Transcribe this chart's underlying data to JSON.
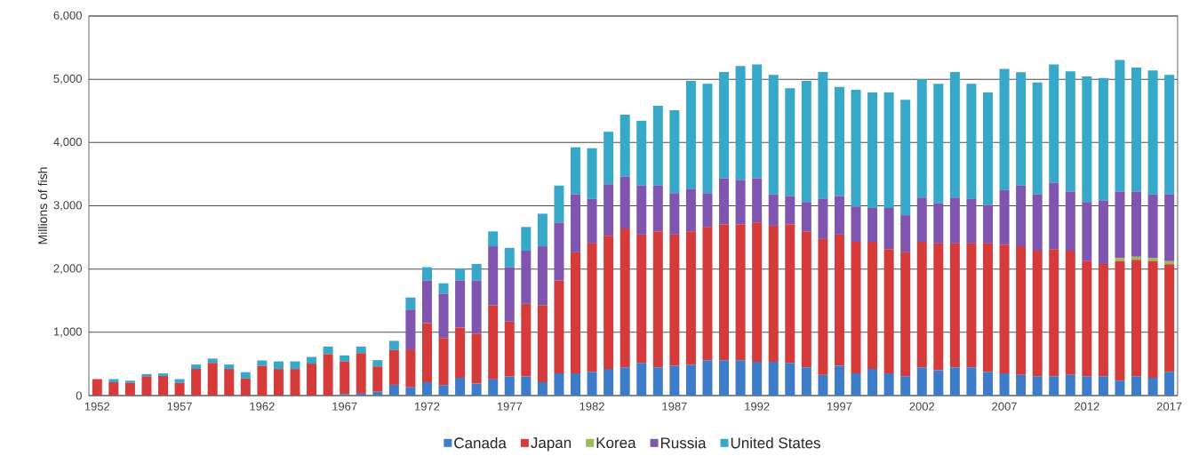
{
  "chart_data": {
    "type": "bar",
    "stacked": true,
    "ylabel": "Millions of fish",
    "categories": [
      "1952",
      null,
      null,
      null,
      null,
      "1957",
      null,
      null,
      null,
      null,
      "1962",
      null,
      null,
      null,
      null,
      "1967",
      null,
      null,
      null,
      null,
      "1972",
      null,
      null,
      null,
      null,
      "1977",
      null,
      null,
      null,
      null,
      "1982",
      null,
      null,
      null,
      null,
      "1987",
      null,
      null,
      null,
      null,
      "1992",
      null,
      null,
      null,
      null,
      "1997",
      null,
      null,
      null,
      null,
      "2002",
      null,
      null,
      null,
      null,
      "2007",
      null,
      null,
      null,
      null,
      "2012",
      null,
      null,
      null,
      null,
      "2017"
    ],
    "series": [
      {
        "name": "Canada",
        "color": "#3d7cc9",
        "values": [
          0,
          0,
          0,
          0,
          0,
          0,
          0,
          0,
          0,
          0,
          0,
          0,
          0,
          0,
          0,
          20,
          30,
          60,
          170,
          130,
          210,
          165,
          280,
          190,
          255,
          300,
          300,
          210,
          350,
          350,
          375,
          420,
          445,
          515,
          445,
          470,
          490,
          560,
          560,
          560,
          535,
          535,
          515,
          445,
          325,
          470,
          350,
          420,
          350,
          305,
          445,
          400,
          445,
          445,
          375,
          350,
          325,
          305,
          305,
          325,
          305,
          305,
          235,
          305,
          280,
          375
        ]
      },
      {
        "name": "Japan",
        "color": "#d63b3b",
        "values": [
          260,
          210,
          200,
          305,
          310,
          200,
          420,
          515,
          420,
          270,
          470,
          420,
          420,
          505,
          655,
          520,
          640,
          400,
          550,
          600,
          935,
          745,
          795,
          790,
          1170,
          870,
          1150,
          1215,
          1470,
          1915,
          2030,
          2105,
          2195,
          2030,
          2150,
          2075,
          2105,
          2105,
          2150,
          2150,
          2200,
          2150,
          2195,
          2150,
          2150,
          2075,
          2080,
          2010,
          1965,
          1960,
          1985,
          2005,
          1960,
          1960,
          2030,
          2035,
          2035,
          1985,
          2010,
          1965,
          1820,
          1775,
          1890,
          1840,
          1845,
          1700
        ]
      },
      {
        "name": "Korea",
        "color": "#9bbb59",
        "values": [
          0,
          0,
          0,
          0,
          0,
          0,
          0,
          0,
          0,
          0,
          0,
          0,
          0,
          0,
          0,
          0,
          0,
          0,
          0,
          0,
          0,
          0,
          0,
          0,
          0,
          0,
          0,
          0,
          0,
          0,
          0,
          0,
          0,
          0,
          0,
          0,
          0,
          0,
          0,
          0,
          0,
          0,
          0,
          0,
          0,
          0,
          0,
          0,
          0,
          0,
          0,
          0,
          0,
          0,
          0,
          0,
          0,
          0,
          0,
          0,
          0,
          0,
          50,
          50,
          50,
          50
        ]
      },
      {
        "name": "Russia",
        "color": "#7f55b0",
        "values": [
          0,
          0,
          0,
          0,
          0,
          0,
          0,
          0,
          0,
          0,
          0,
          0,
          0,
          0,
          0,
          0,
          0,
          0,
          0,
          630,
          675,
          700,
          745,
          840,
          935,
          860,
          840,
          935,
          915,
          915,
          705,
          815,
          820,
          775,
          725,
          655,
          675,
          535,
          725,
          700,
          700,
          495,
          445,
          465,
          635,
          610,
          560,
          535,
          650,
          585,
          700,
          635,
          725,
          705,
          610,
          865,
          960,
          890,
          1050,
          935,
          935,
          1005,
          1050,
          1030,
          1005,
          1055
        ]
      },
      {
        "name": "United States",
        "color": "#37a8c8",
        "values": [
          0,
          50,
          35,
          35,
          40,
          60,
          70,
          70,
          70,
          100,
          85,
          120,
          120,
          105,
          120,
          95,
          105,
          100,
          145,
          190,
          210,
          165,
          190,
          260,
          235,
          305,
          375,
          515,
          585,
          745,
          800,
          830,
          980,
          1025,
          1260,
          1310,
          1705,
          1730,
          1680,
          1800,
          1800,
          1890,
          1705,
          1915,
          2005,
          1725,
          1845,
          1825,
          1825,
          1825,
          1870,
          1890,
          1985,
          1820,
          1775,
          1915,
          1790,
          1770,
          1870,
          1900,
          1985,
          1935,
          2080,
          1960,
          1960,
          1890
        ]
      }
    ],
    "ylim": [
      0,
      6000
    ],
    "yticks": [
      {
        "value": 0,
        "label": "0"
      },
      {
        "value": 1000,
        "label": "1,000"
      },
      {
        "value": 2000,
        "label": "2,000"
      },
      {
        "value": 3000,
        "label": "3,000"
      },
      {
        "value": 4000,
        "label": "4,000"
      },
      {
        "value": 5000,
        "label": "5,000"
      },
      {
        "value": 6000,
        "label": "6,000"
      }
    ],
    "grid": "y",
    "legend": "bottom"
  }
}
